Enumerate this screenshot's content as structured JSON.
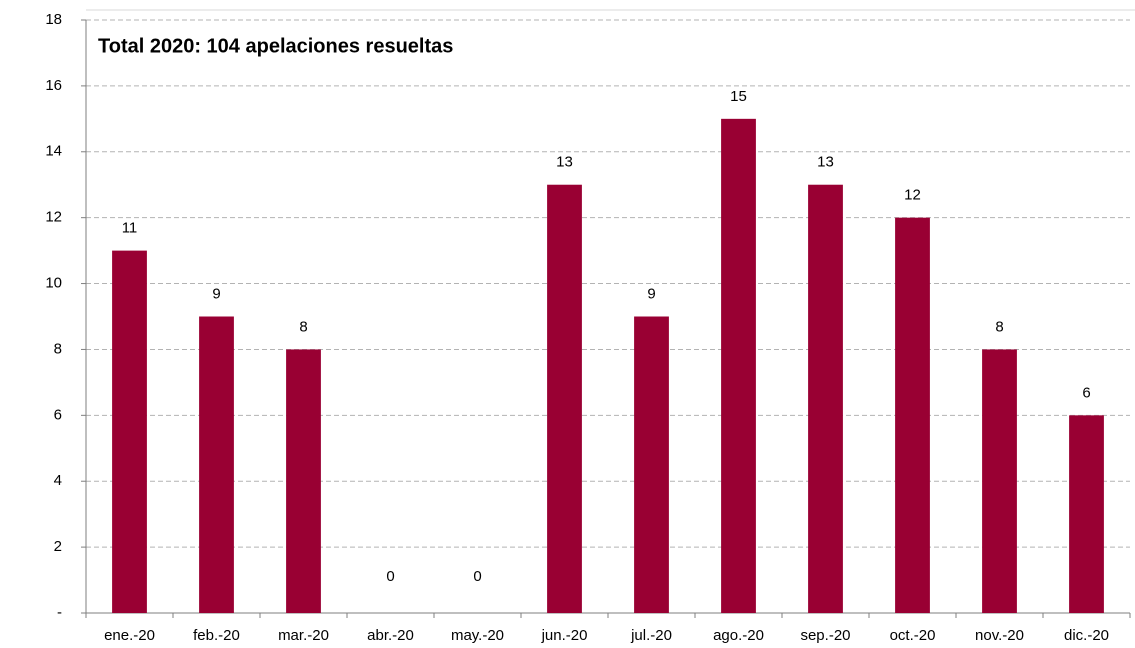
{
  "chart_data": {
    "type": "bar",
    "title": "Total 2020: 104 apelaciones resueltas",
    "categories": [
      "ene.-20",
      "feb.-20",
      "mar.-20",
      "abr.-20",
      "may.-20",
      "jun.-20",
      "jul.-20",
      "ago.-20",
      "sep.-20",
      "oct.-20",
      "nov.-20",
      "dic.-20"
    ],
    "values": [
      11,
      9,
      8,
      0,
      0,
      13,
      9,
      15,
      13,
      12,
      8,
      6
    ],
    "color": "#990033",
    "ylim": [
      0,
      18
    ],
    "yticks": [
      {
        "value": 0,
        "label": "-"
      },
      2,
      4,
      6,
      8,
      10,
      12,
      14,
      16,
      18
    ],
    "grid": true
  }
}
